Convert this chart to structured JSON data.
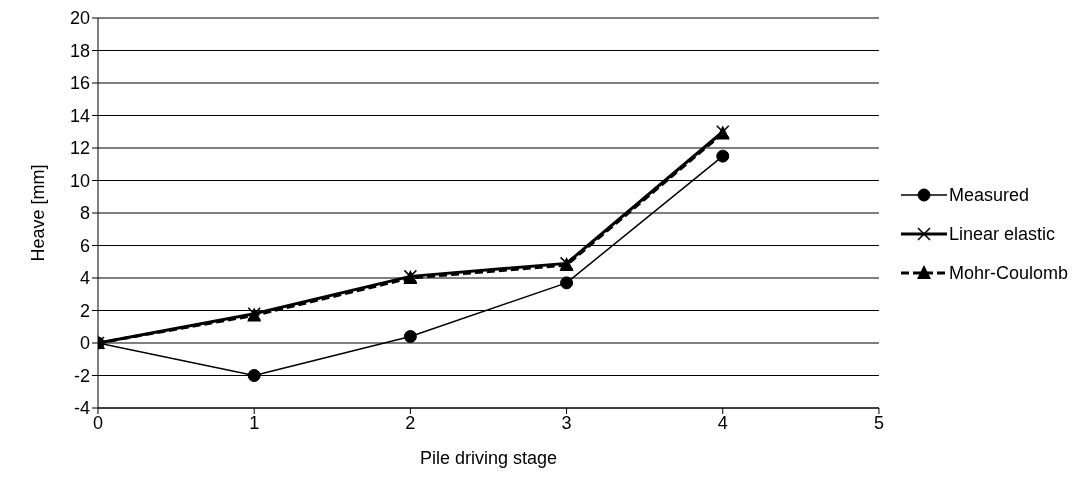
{
  "chart_data": {
    "type": "line",
    "xlabel": "Pile driving stage",
    "ylabel": "Heave [mm]",
    "x": [
      0,
      1,
      2,
      3,
      4
    ],
    "series": [
      {
        "name": "Measured",
        "color": "#000000",
        "values": [
          0,
          -2,
          0.4,
          3.7,
          11.5
        ],
        "marker": "circle",
        "line_style": "solid"
      },
      {
        "name": "Linear elastic",
        "color": "#000000",
        "values": [
          0,
          1.8,
          4.1,
          4.9,
          13.0
        ],
        "marker": "cross",
        "line_style": "solid"
      },
      {
        "name": "Mohr-Coulomb",
        "color": "#000000",
        "values": [
          0,
          1.7,
          4.0,
          4.8,
          12.9
        ],
        "marker": "triangle",
        "line_style": "dashed"
      }
    ],
    "xlim": [
      0,
      5
    ],
    "xticks": [
      0,
      1,
      2,
      3,
      4,
      5
    ],
    "ylim": [
      -4,
      20
    ],
    "yticks": [
      -4,
      -2,
      0,
      2,
      4,
      6,
      8,
      10,
      12,
      14,
      16,
      18,
      20
    ],
    "grid": "y",
    "legend": "right"
  }
}
